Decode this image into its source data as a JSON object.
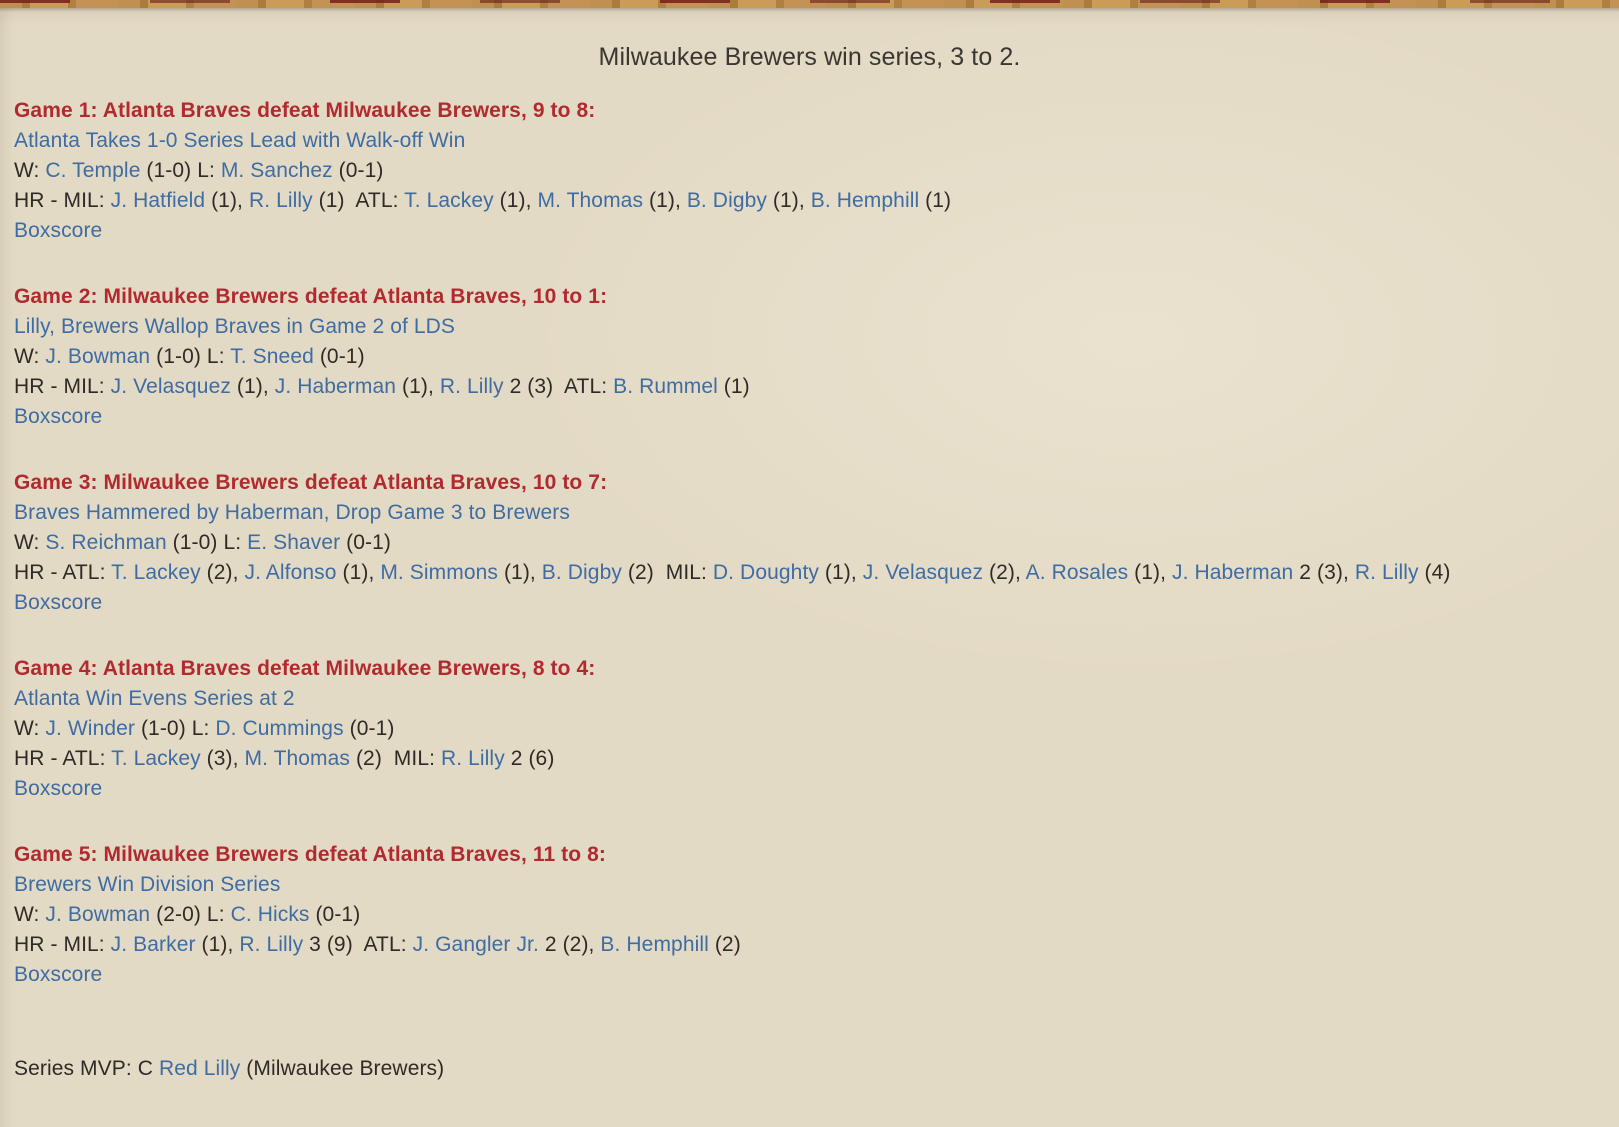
{
  "colors": {
    "header_red": "#b02a30",
    "link_blue": "#3e6ca3",
    "text_dark": "#2e2b27",
    "parchment_bg": "#e3dac5",
    "wood_tan": "#c09050"
  },
  "page": {
    "title": "Milwaukee Brewers win series, 3 to 2."
  },
  "games": [
    {
      "header": "Game 1: Atlanta Braves defeat Milwaukee Brewers, 9 to 8:",
      "headline": "Atlanta Takes 1-0 Series Lead with Walk-off Win",
      "wl": [
        {
          "t": "W: ",
          "s": "text"
        },
        {
          "t": "C. Temple",
          "s": "link"
        },
        {
          "t": " (1-0) L: ",
          "s": "text"
        },
        {
          "t": "M. Sanchez",
          "s": "link"
        },
        {
          "t": " (0-1)",
          "s": "text"
        }
      ],
      "hr": [
        {
          "t": "HR - MIL: ",
          "s": "text"
        },
        {
          "t": "J. Hatfield",
          "s": "link"
        },
        {
          "t": " (1), ",
          "s": "text"
        },
        {
          "t": "R. Lilly",
          "s": "link"
        },
        {
          "t": " (1)  ATL: ",
          "s": "text"
        },
        {
          "t": "T. Lackey",
          "s": "link"
        },
        {
          "t": " (1), ",
          "s": "text"
        },
        {
          "t": "M. Thomas",
          "s": "link"
        },
        {
          "t": " (1), ",
          "s": "text"
        },
        {
          "t": "B. Digby",
          "s": "link"
        },
        {
          "t": " (1), ",
          "s": "text"
        },
        {
          "t": "B. Hemphill",
          "s": "link"
        },
        {
          "t": " (1)",
          "s": "text"
        }
      ],
      "boxscore_label": "Boxscore"
    },
    {
      "header": "Game 2: Milwaukee Brewers defeat Atlanta Braves, 10 to 1:",
      "headline": "Lilly, Brewers Wallop Braves in Game 2 of LDS",
      "wl": [
        {
          "t": "W: ",
          "s": "text"
        },
        {
          "t": "J. Bowman",
          "s": "link"
        },
        {
          "t": " (1-0) L: ",
          "s": "text"
        },
        {
          "t": "T. Sneed",
          "s": "link"
        },
        {
          "t": " (0-1)",
          "s": "text"
        }
      ],
      "hr": [
        {
          "t": "HR - MIL: ",
          "s": "text"
        },
        {
          "t": "J. Velasquez",
          "s": "link"
        },
        {
          "t": " (1), ",
          "s": "text"
        },
        {
          "t": "J. Haberman",
          "s": "link"
        },
        {
          "t": " (1), ",
          "s": "text"
        },
        {
          "t": "R. Lilly",
          "s": "link"
        },
        {
          "t": " 2 (3)  ATL: ",
          "s": "text"
        },
        {
          "t": "B. Rummel",
          "s": "link"
        },
        {
          "t": " (1)",
          "s": "text"
        }
      ],
      "boxscore_label": "Boxscore"
    },
    {
      "header": "Game 3: Milwaukee Brewers defeat Atlanta Braves, 10 to 7:",
      "headline": "Braves Hammered by Haberman, Drop Game 3 to Brewers",
      "wl": [
        {
          "t": "W: ",
          "s": "text"
        },
        {
          "t": "S. Reichman",
          "s": "link"
        },
        {
          "t": " (1-0) L: ",
          "s": "text"
        },
        {
          "t": "E. Shaver",
          "s": "link"
        },
        {
          "t": " (0-1)",
          "s": "text"
        }
      ],
      "hr": [
        {
          "t": "HR - ATL: ",
          "s": "text"
        },
        {
          "t": "T. Lackey",
          "s": "link"
        },
        {
          "t": " (2), ",
          "s": "text"
        },
        {
          "t": "J. Alfonso",
          "s": "link"
        },
        {
          "t": " (1), ",
          "s": "text"
        },
        {
          "t": "M. Simmons",
          "s": "link"
        },
        {
          "t": " (1), ",
          "s": "text"
        },
        {
          "t": "B. Digby",
          "s": "link"
        },
        {
          "t": " (2)  MIL: ",
          "s": "text"
        },
        {
          "t": "D. Doughty",
          "s": "link"
        },
        {
          "t": " (1), ",
          "s": "text"
        },
        {
          "t": "J. Velasquez",
          "s": "link"
        },
        {
          "t": " (2), ",
          "s": "text"
        },
        {
          "t": "A. Rosales",
          "s": "link"
        },
        {
          "t": " (1), ",
          "s": "text"
        },
        {
          "t": "J. Haberman",
          "s": "link"
        },
        {
          "t": " 2 (3), ",
          "s": "text"
        },
        {
          "t": "R. Lilly",
          "s": "link"
        },
        {
          "t": " (4)",
          "s": "text"
        }
      ],
      "boxscore_label": "Boxscore"
    },
    {
      "header": "Game 4: Atlanta Braves defeat Milwaukee Brewers, 8 to 4:",
      "headline": "Atlanta Win Evens Series at 2",
      "wl": [
        {
          "t": "W: ",
          "s": "text"
        },
        {
          "t": "J. Winder",
          "s": "link"
        },
        {
          "t": " (1-0) L: ",
          "s": "text"
        },
        {
          "t": "D. Cummings",
          "s": "link"
        },
        {
          "t": " (0-1)",
          "s": "text"
        }
      ],
      "hr": [
        {
          "t": "HR - ATL: ",
          "s": "text"
        },
        {
          "t": "T. Lackey",
          "s": "link"
        },
        {
          "t": " (3), ",
          "s": "text"
        },
        {
          "t": "M. Thomas",
          "s": "link"
        },
        {
          "t": " (2)  MIL: ",
          "s": "text"
        },
        {
          "t": "R. Lilly",
          "s": "link"
        },
        {
          "t": " 2 (6)",
          "s": "text"
        }
      ],
      "boxscore_label": "Boxscore"
    },
    {
      "header": "Game 5: Milwaukee Brewers defeat Atlanta Braves, 11 to 8:",
      "headline": "Brewers Win Division Series",
      "wl": [
        {
          "t": "W: ",
          "s": "text"
        },
        {
          "t": "J. Bowman",
          "s": "link"
        },
        {
          "t": " (2-0) L: ",
          "s": "text"
        },
        {
          "t": "C. Hicks",
          "s": "link"
        },
        {
          "t": " (0-1)",
          "s": "text"
        }
      ],
      "hr": [
        {
          "t": "HR - MIL: ",
          "s": "text"
        },
        {
          "t": "J. Barker",
          "s": "link"
        },
        {
          "t": " (1), ",
          "s": "text"
        },
        {
          "t": "R. Lilly",
          "s": "link"
        },
        {
          "t": " 3 (9)  ATL: ",
          "s": "text"
        },
        {
          "t": "J. Gangler Jr.",
          "s": "link"
        },
        {
          "t": " 2 (2), ",
          "s": "text"
        },
        {
          "t": "B. Hemphill",
          "s": "link"
        },
        {
          "t": " (2)",
          "s": "text"
        }
      ],
      "boxscore_label": "Boxscore"
    }
  ],
  "mvp": [
    {
      "t": "Series MVP: C ",
      "s": "text"
    },
    {
      "t": "Red Lilly",
      "s": "link"
    },
    {
      "t": " (Milwaukee Brewers)",
      "s": "text"
    }
  ]
}
